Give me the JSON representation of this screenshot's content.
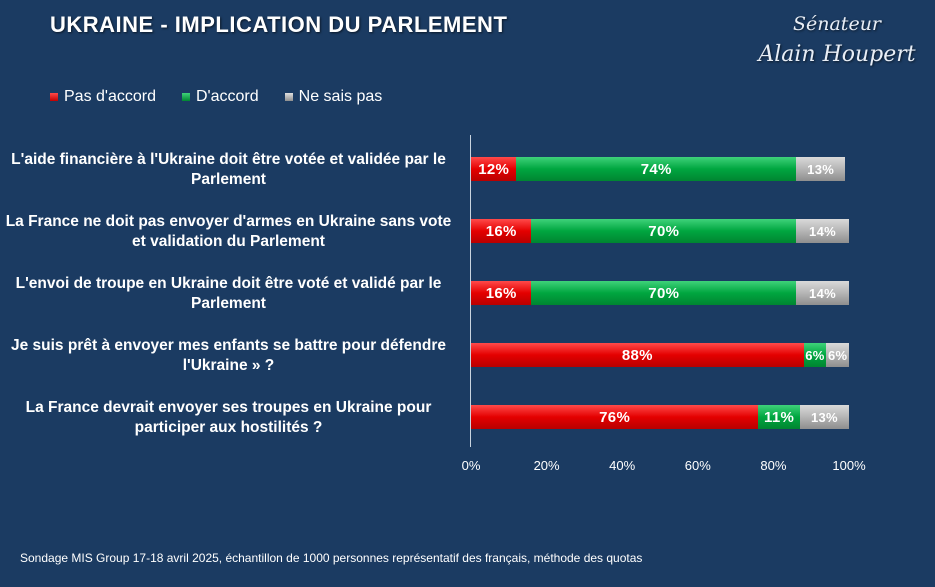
{
  "title": "UKRAINE - IMPLICATION DU PARLEMENT",
  "signature": {
    "line1": "Sénateur",
    "line2": "Alain Houpert"
  },
  "legend": [
    {
      "label": "Pas d'accord",
      "color": "#e40000"
    },
    {
      "label": "D'accord",
      "color": "#00a640"
    },
    {
      "label": "Ne sais pas",
      "color": "#b5b5b5"
    }
  ],
  "footnote": "Sondage MIS Group 17-18 avril 2025, échantillon de 1000 personnes représentatif des français, méthode des quotas",
  "chart_data": {
    "type": "bar",
    "orientation": "horizontal",
    "stacked": true,
    "title": "UKRAINE - IMPLICATION DU PARLEMENT",
    "categories": [
      "L'aide financière à l'Ukraine doit être votée et validée par le Parlement",
      "La France ne doit pas envoyer d'armes en Ukraine sans vote et validation du Parlement",
      "L'envoi de troupe en Ukraine doit être voté et validé par le Parlement",
      "Je suis prêt à envoyer mes enfants se battre pour défendre l'Ukraine » ?",
      "La France devrait envoyer ses troupes en Ukraine pour participer aux hostilités ?"
    ],
    "series": [
      {
        "name": "Pas d'accord",
        "color": "#e40000",
        "values": [
          12,
          16,
          16,
          88,
          76
        ],
        "labels": [
          "12%",
          "16%",
          "16%",
          "88%",
          "76%"
        ]
      },
      {
        "name": "D'accord",
        "color": "#00a640",
        "values": [
          74,
          70,
          70,
          6,
          11
        ],
        "labels": [
          "74%",
          "70%",
          "70%",
          "6%",
          "11%"
        ]
      },
      {
        "name": "Ne sais pas",
        "color": "#b5b5b5",
        "values": [
          13,
          14,
          14,
          6,
          13
        ],
        "labels": [
          "13%",
          "14%",
          "14%",
          "6%",
          "13%"
        ]
      }
    ],
    "xlim": [
      0,
      100
    ],
    "xticks": [
      "0%",
      "20%",
      "40%",
      "60%",
      "80%",
      "100%"
    ],
    "legend_position": "top-left"
  }
}
